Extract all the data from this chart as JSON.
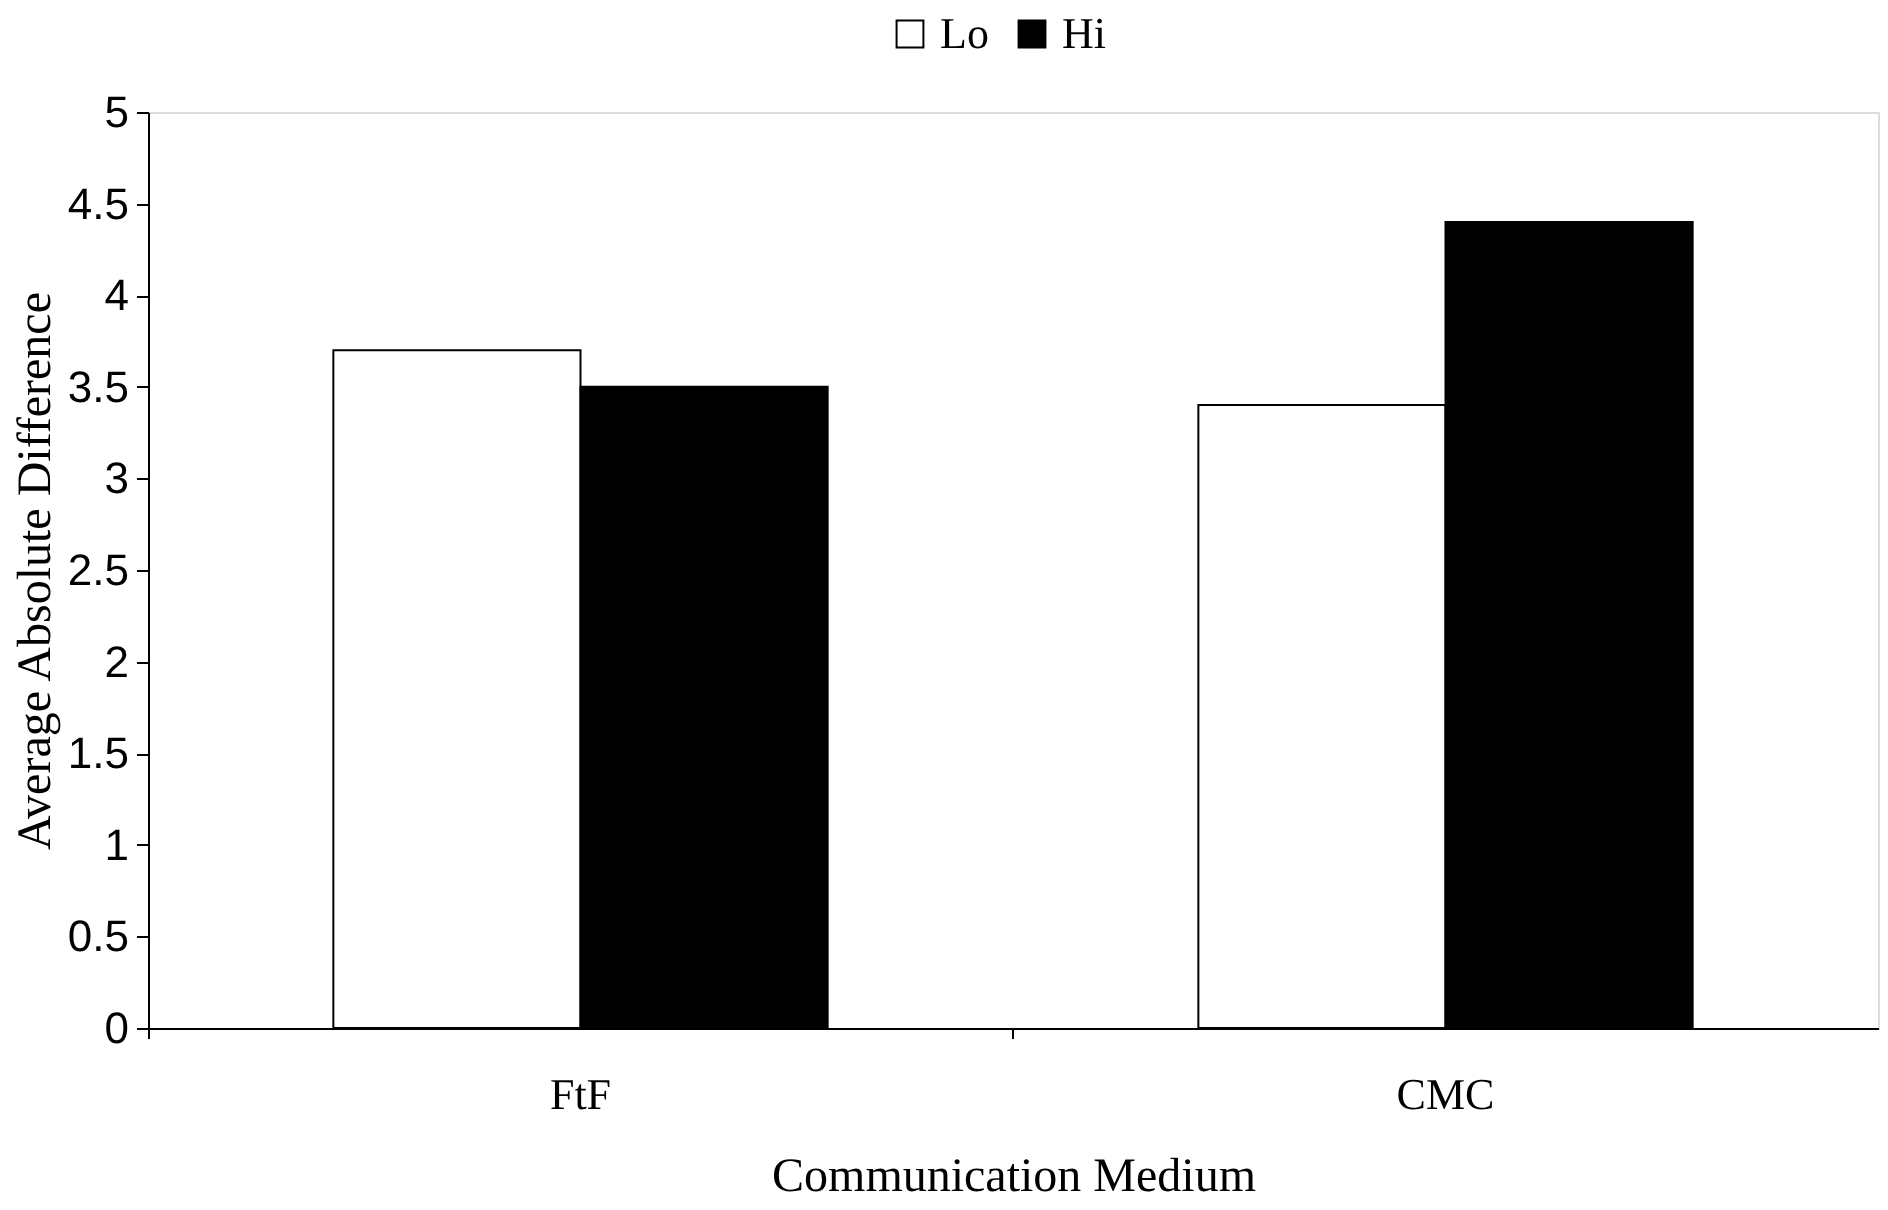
{
  "chart_data": {
    "type": "bar",
    "xlabel": "Communication Medium",
    "ylabel": "Average Absolute Difference",
    "categories": [
      "FtF",
      "CMC"
    ],
    "series": [
      {
        "name": "Lo",
        "color": "#ffffff",
        "values": [
          3.7,
          3.4
        ]
      },
      {
        "name": "Hi",
        "color": "#000000",
        "values": [
          3.5,
          4.4
        ]
      }
    ],
    "ylim": [
      0,
      5
    ],
    "yticks": [
      0,
      0.5,
      1,
      1.5,
      2,
      2.5,
      3,
      3.5,
      4,
      4.5,
      5
    ],
    "grid": false,
    "legend": "top"
  }
}
